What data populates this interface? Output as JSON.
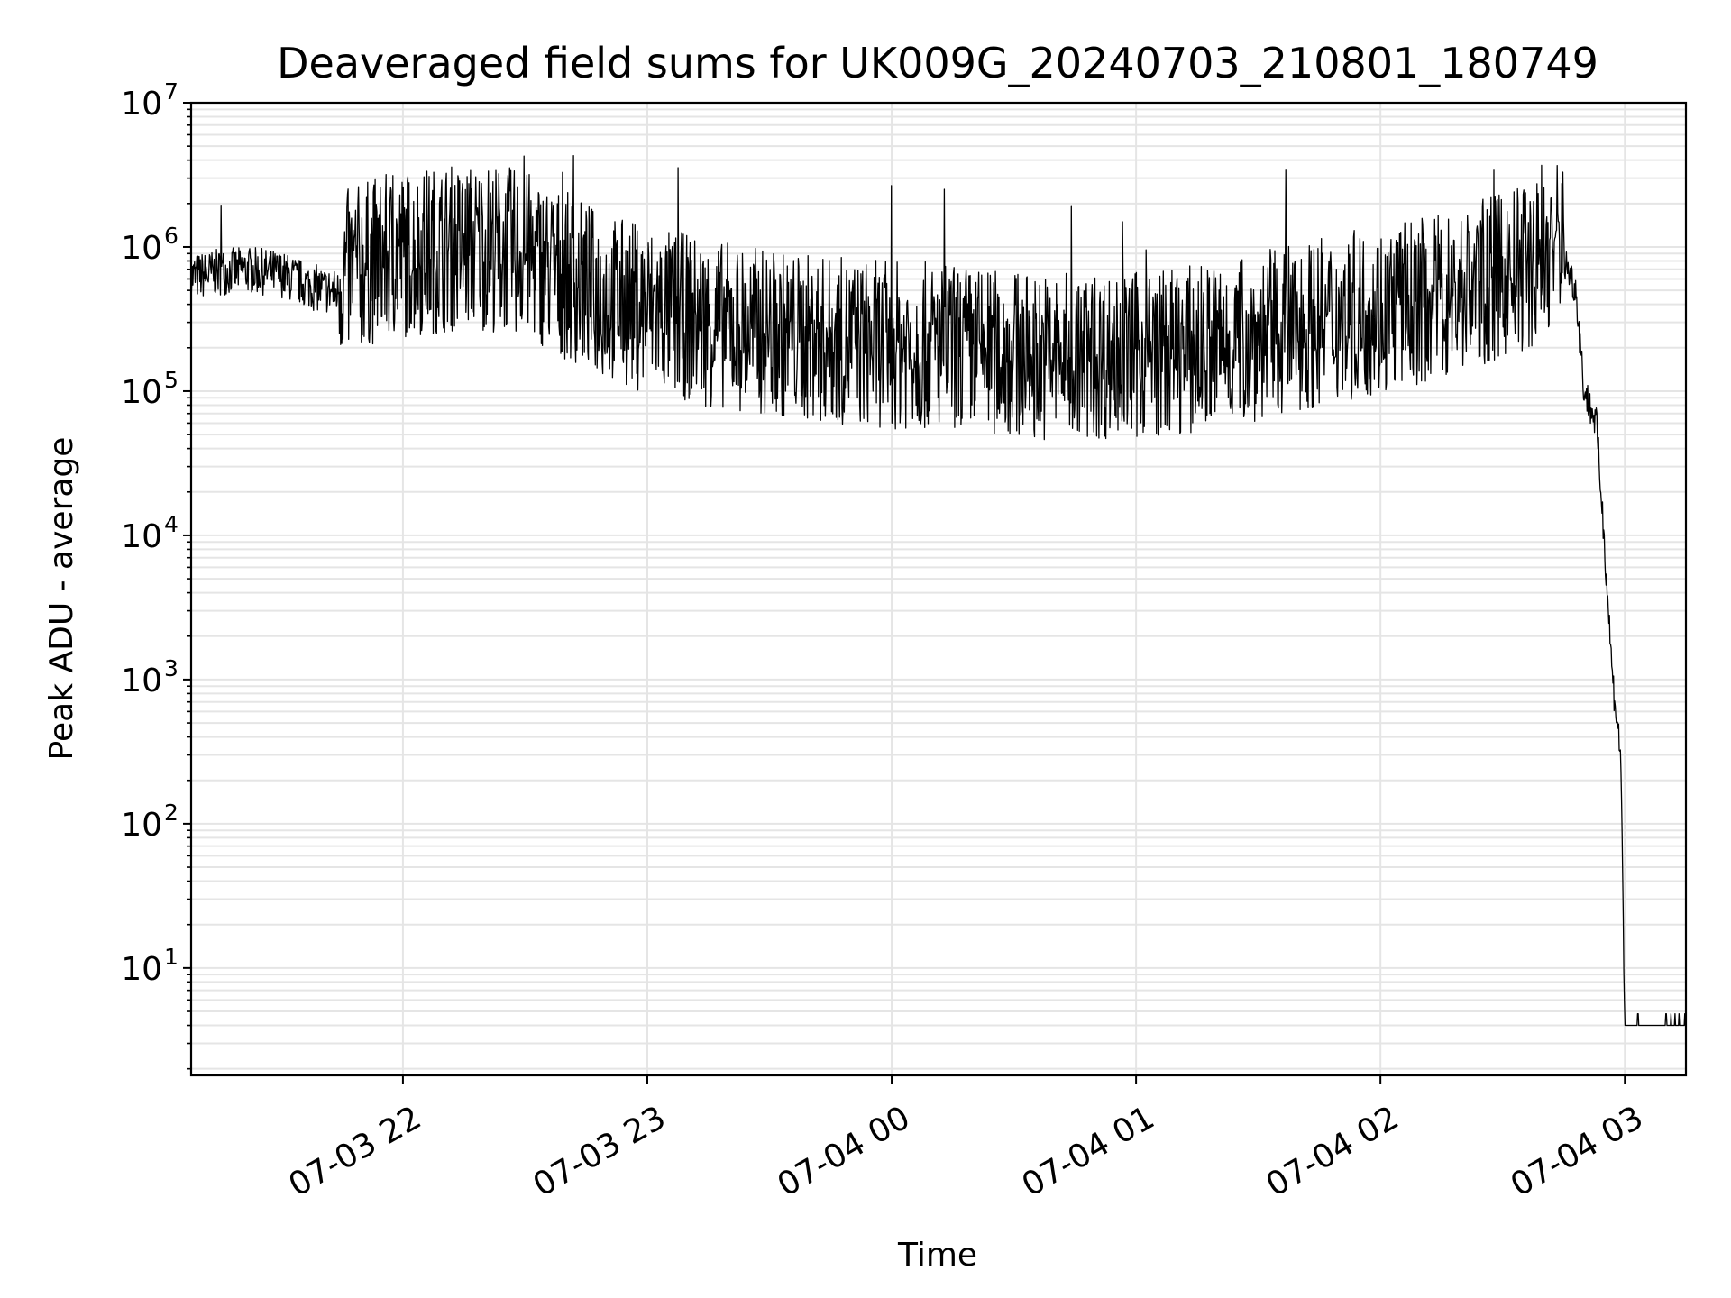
{
  "chart_data": {
    "type": "line",
    "title": "Deaveraged field sums for UK009G_20240703_210801_180749",
    "xlabel": "Time",
    "ylabel": "Peak ADU - average",
    "y_scale": "log",
    "ylim": [
      1.8,
      10000000
    ],
    "xlim": [
      "2024-07-03 21:08",
      "2024-07-04 03:15"
    ],
    "grid": true,
    "line_color": "#000000",
    "grid_color": "#e5e5e5",
    "x_ticks": [
      {
        "value": "2024-07-03 22:00",
        "label": "07-03 22"
      },
      {
        "value": "2024-07-03 23:00",
        "label": "07-03 23"
      },
      {
        "value": "2024-07-04 00:00",
        "label": "07-04 00"
      },
      {
        "value": "2024-07-04 01:00",
        "label": "07-04 01"
      },
      {
        "value": "2024-07-04 02:00",
        "label": "07-04 02"
      },
      {
        "value": "2024-07-04 03:00",
        "label": "07-04 03"
      }
    ],
    "y_ticks": [
      {
        "value": 10,
        "base": "10",
        "exp": "1"
      },
      {
        "value": 100,
        "base": "10",
        "exp": "2"
      },
      {
        "value": 1000,
        "base": "10",
        "exp": "3"
      },
      {
        "value": 10000,
        "base": "10",
        "exp": "4"
      },
      {
        "value": 100000,
        "base": "10",
        "exp": "5"
      },
      {
        "value": 1000000,
        "base": "10",
        "exp": "6"
      },
      {
        "value": 10000000,
        "base": "10",
        "exp": "7"
      }
    ],
    "series": [
      {
        "values_note_free": true,
        "x": [
          "2024-07-03 21:08",
          "2024-07-03 21:15",
          "2024-07-03 21:22",
          "2024-07-03 21:30",
          "2024-07-03 21:37",
          "2024-07-03 21:45",
          "2024-07-03 21:50",
          "2024-07-03 21:55",
          "2024-07-03 22:00",
          "2024-07-03 22:10",
          "2024-07-03 22:20",
          "2024-07-03 22:30",
          "2024-07-03 22:40",
          "2024-07-03 22:50",
          "2024-07-03 23:00",
          "2024-07-03 23:15",
          "2024-07-03 23:30",
          "2024-07-03 23:45",
          "2024-07-04 00:00",
          "2024-07-04 00:15",
          "2024-07-04 00:30",
          "2024-07-04 00:45",
          "2024-07-04 01:00",
          "2024-07-04 01:15",
          "2024-07-04 01:30",
          "2024-07-04 01:45",
          "2024-07-04 02:00",
          "2024-07-04 02:15",
          "2024-07-04 02:30",
          "2024-07-04 02:40",
          "2024-07-04 02:45",
          "2024-07-04 02:48",
          "2024-07-04 02:50",
          "2024-07-04 02:53",
          "2024-07-04 02:55",
          "2024-07-04 02:57",
          "2024-07-04 02:59",
          "2024-07-04 03:00",
          "2024-07-04 03:15"
        ],
        "values": [
          550000,
          600000,
          620000,
          580000,
          480000,
          420000,
          500000,
          550000,
          600000,
          650000,
          680000,
          600000,
          420000,
          300000,
          250000,
          200000,
          170000,
          150000,
          140000,
          135000,
          120000,
          115000,
          120000,
          130000,
          160000,
          200000,
          250000,
          300000,
          420000,
          550000,
          850000,
          500000,
          100000,
          60000,
          9000,
          1000,
          300,
          4,
          4
        ]
      }
    ]
  }
}
